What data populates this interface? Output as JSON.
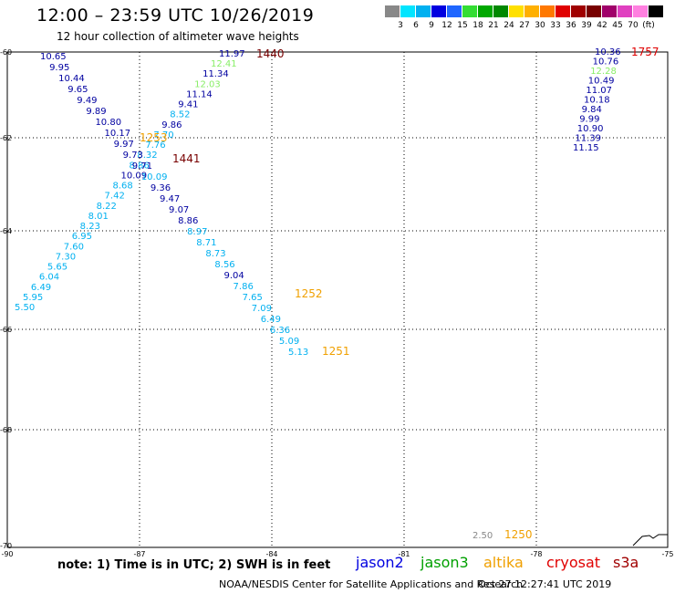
{
  "title": "12:00 – 23:59 UTC 10/26/2019",
  "subtitle": "12 hour collection of altimeter wave heights",
  "legend": {
    "colors": [
      "#888888",
      "#00e5ff",
      "#00b0f0",
      "#0000e0",
      "#1f66ff",
      "#33dd33",
      "#00a800",
      "#008800",
      "#ffe000",
      "#ffb000",
      "#ff7800",
      "#e00000",
      "#a00000",
      "#780000",
      "#a0006a",
      "#e040c0",
      "#ff80e0",
      "#000000"
    ],
    "labels": [
      "3",
      "6",
      "9",
      "12",
      "15",
      "18",
      "21",
      "24",
      "27",
      "30",
      "33",
      "36",
      "39",
      "42",
      "45",
      "70",
      "(ft)"
    ]
  },
  "axes": {
    "lat_labels": [
      "-60",
      "-62",
      "-64",
      "-66",
      "-68",
      "-70"
    ],
    "lon_labels": [
      "-90",
      "-87",
      "-84",
      "-81",
      "-78",
      "-75"
    ]
  },
  "tracks": [
    {
      "name": "track-a",
      "time": "1440",
      "time_color": "#780000",
      "values": [
        "11.97",
        "12.41",
        "11.34",
        "12.03",
        "11.14",
        "9.41",
        "8.52",
        "9.86",
        "7.70",
        "7.76",
        "8.32",
        "8.86",
        "10.09",
        "8.68",
        "7.42",
        "8.22",
        "8.01",
        "8.23",
        "6.95",
        "7.60",
        "7.30",
        "5.65",
        "6.04",
        "6.49",
        "5.95",
        "5.50"
      ],
      "colors": [
        "#0000a0",
        "#88ee66",
        "#0000a0",
        "#88ee66",
        "#0000a0",
        "#0000a0",
        "#00b0f0",
        "#0000a0",
        "#00b0f0",
        "#00b0f0",
        "#00b0f0",
        "#00b0f0",
        "#0000a0",
        "#00b0f0",
        "#00b0f0",
        "#00b0f0",
        "#00b0f0",
        "#00b0f0",
        "#00b0f0",
        "#00b0f0",
        "#00b0f0",
        "#00b0f0",
        "#00b0f0",
        "#00b0f0",
        "#00b0f0",
        "#00b0f0"
      ]
    },
    {
      "name": "track-b",
      "time": "1441",
      "time_color": "#780000",
      "values": [
        "10.65",
        "9.95",
        "10.44",
        "9.65",
        "9.49",
        "9.89",
        "10.80",
        "10.17",
        "9.97",
        "9.73",
        "9.71",
        "10.09",
        "9.36",
        "9.47",
        "9.07",
        "8.86",
        "8.97",
        "8.71",
        "8.73",
        "8.56",
        "9.04",
        "7.86",
        "7.65",
        "7.09",
        "6.49",
        "6.36",
        "5.09",
        "5.13"
      ],
      "colors": [
        "#0000a0",
        "#0000a0",
        "#0000a0",
        "#0000a0",
        "#0000a0",
        "#0000a0",
        "#0000a0",
        "#0000a0",
        "#0000a0",
        "#0000a0",
        "#0000a0",
        "#00b0f0",
        "#0000a0",
        "#0000a0",
        "#0000a0",
        "#0000a0",
        "#00b0f0",
        "#00b0f0",
        "#00b0f0",
        "#00b0f0",
        "#0000a0",
        "#00b0f0",
        "#00b0f0",
        "#00b0f0",
        "#00b0f0",
        "#00b0f0",
        "#00b0f0",
        "#00b0f0"
      ]
    },
    {
      "name": "track-c",
      "time": "1757",
      "time_color": "#e00000",
      "values": [
        "10.36",
        "10.76",
        "12.28",
        "10.49",
        "11.07",
        "10.18",
        "9.84",
        "9.99",
        "10.90",
        "11.39",
        "11.15"
      ],
      "colors": [
        "#0000a0",
        "#0000a0",
        "#88ee66",
        "#0000a0",
        "#0000a0",
        "#0000a0",
        "#0000a0",
        "#0000a0",
        "#0000a0",
        "#0000a0",
        "#0000a0"
      ]
    }
  ],
  "time_labels": [
    {
      "text": "1253",
      "color": "#f0a000"
    },
    {
      "text": "1252",
      "color": "#f0a000"
    },
    {
      "text": "1251",
      "color": "#f0a000"
    },
    {
      "text": "1250",
      "color": "#f0a000"
    }
  ],
  "bottom_value": {
    "text": "2.50",
    "color": "#888888"
  },
  "note": "note: 1) Time is in UTC; 2) SWH is in feet",
  "satellites": [
    {
      "name": "jason2",
      "color": "#0000e0"
    },
    {
      "name": "jason3",
      "color": "#00a000"
    },
    {
      "name": "altika",
      "color": "#f0a000"
    },
    {
      "name": "cryosat",
      "color": "#e00000"
    },
    {
      "name": "s3a",
      "color": "#a00000"
    }
  ],
  "footer": "NOAA/NESDIS Center for Satellite Applications and Research",
  "timestamp": "Oct 27 12:27:41 UTC 2019"
}
